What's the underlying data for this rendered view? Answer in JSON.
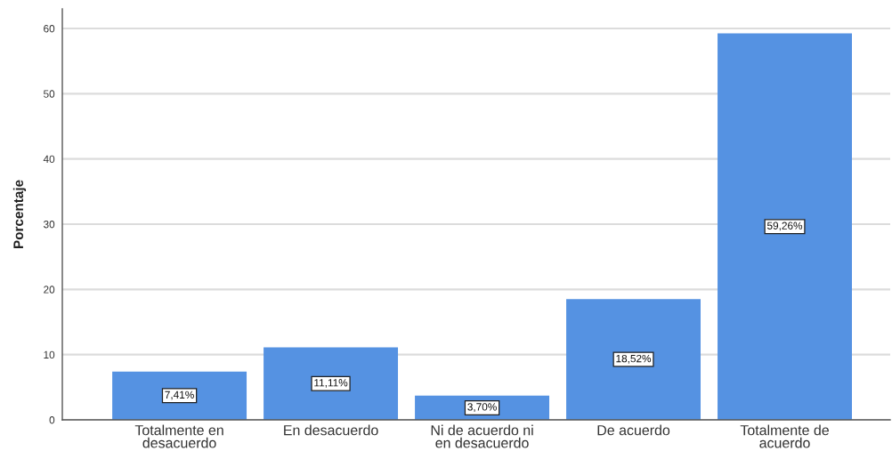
{
  "chart_data": {
    "type": "bar",
    "ylabel": "Porcentaje",
    "categories": [
      "Totalmente en\ndesacuerdo",
      "En desacuerdo",
      "Ni de acuerdo ni\nen desacuerdo",
      "De acuerdo",
      "Totalmente de\nacuerdo"
    ],
    "values": [
      7.41,
      11.11,
      3.7,
      18.52,
      59.26
    ],
    "value_labels": [
      "7,41%",
      "11,11%",
      "3,70%",
      "18,52%",
      "59,26%"
    ],
    "color": "#5592e2",
    "ylim": [
      0,
      63
    ],
    "yticks": [
      0,
      10,
      20,
      30,
      40,
      50,
      60
    ],
    "grid": "y"
  }
}
